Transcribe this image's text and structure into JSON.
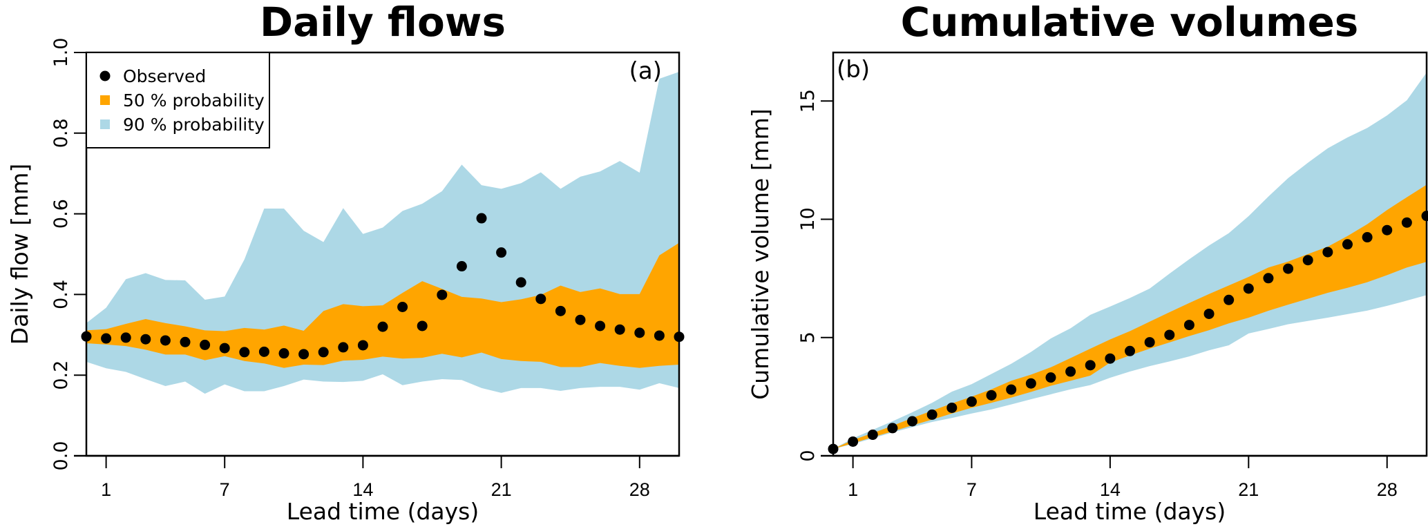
{
  "legend": {
    "observed": "Observed",
    "p50": "50 % probability",
    "p90": "90 % probability"
  },
  "colors": {
    "observed": "#000000",
    "band50": "#FFA500",
    "band90": "#ADD8E6"
  },
  "chart_data": [
    {
      "type": "area",
      "title": "Daily flows",
      "panel_label": "(a)",
      "xlabel": "Lead time (days)",
      "ylabel": "Daily flow [mm]",
      "xlim": [
        0,
        30
      ],
      "ylim": [
        0,
        1.0
      ],
      "x_ticks": [
        1,
        7,
        14,
        21,
        28
      ],
      "x_tick_labels": [
        "1",
        "7",
        "14",
        "21",
        "28"
      ],
      "y_ticks": [
        0,
        0.2,
        0.4,
        0.6,
        0.8,
        1.0
      ],
      "y_tick_labels": [
        "0.0",
        "0.2",
        "0.4",
        "0.6",
        "0.8",
        "1.0"
      ],
      "grid": false,
      "legend_position": "top-left",
      "x": [
        0,
        1,
        2,
        3,
        4,
        5,
        6,
        7,
        8,
        9,
        10,
        11,
        12,
        13,
        14,
        15,
        16,
        17,
        18,
        19,
        20,
        21,
        22,
        23,
        24,
        25,
        26,
        27,
        28,
        29,
        30
      ],
      "observed": [
        0.296,
        0.291,
        0.293,
        0.289,
        0.286,
        0.282,
        0.275,
        0.267,
        0.257,
        0.258,
        0.254,
        0.252,
        0.257,
        0.269,
        0.274,
        0.32,
        0.369,
        0.322,
        0.399,
        0.47,
        0.589,
        0.504,
        0.43,
        0.389,
        0.359,
        0.337,
        0.322,
        0.313,
        0.305,
        0.298,
        0.295
      ],
      "band90_upper": [
        0.329,
        0.367,
        0.438,
        0.453,
        0.436,
        0.435,
        0.387,
        0.395,
        0.487,
        0.613,
        0.613,
        0.558,
        0.53,
        0.614,
        0.55,
        0.566,
        0.607,
        0.625,
        0.656,
        0.722,
        0.671,
        0.662,
        0.676,
        0.703,
        0.662,
        0.692,
        0.705,
        0.731,
        0.702,
        0.935,
        0.952
      ],
      "band90_lower": [
        0.233,
        0.217,
        0.208,
        0.19,
        0.173,
        0.184,
        0.154,
        0.177,
        0.16,
        0.16,
        0.173,
        0.189,
        0.184,
        0.183,
        0.186,
        0.202,
        0.175,
        0.184,
        0.19,
        0.188,
        0.168,
        0.156,
        0.168,
        0.168,
        0.161,
        0.168,
        0.171,
        0.171,
        0.164,
        0.18,
        0.168
      ],
      "band50_upper": [
        0.311,
        0.314,
        0.327,
        0.339,
        0.329,
        0.321,
        0.311,
        0.309,
        0.317,
        0.313,
        0.323,
        0.31,
        0.359,
        0.376,
        0.371,
        0.373,
        0.404,
        0.433,
        0.414,
        0.394,
        0.39,
        0.381,
        0.388,
        0.399,
        0.422,
        0.406,
        0.415,
        0.401,
        0.401,
        0.497,
        0.528
      ],
      "band50_lower": [
        0.279,
        0.276,
        0.272,
        0.263,
        0.251,
        0.251,
        0.237,
        0.247,
        0.235,
        0.229,
        0.218,
        0.226,
        0.225,
        0.236,
        0.238,
        0.246,
        0.241,
        0.243,
        0.253,
        0.244,
        0.256,
        0.24,
        0.235,
        0.233,
        0.22,
        0.22,
        0.23,
        0.223,
        0.218,
        0.223,
        0.226
      ]
    },
    {
      "type": "area",
      "title": "Cumulative volumes",
      "panel_label": "(b)",
      "xlabel": "Lead time (days)",
      "ylabel": "Cumulative volume [mm]",
      "xlim": [
        0,
        30
      ],
      "ylim": [
        0,
        17.05
      ],
      "x_ticks": [
        1,
        7,
        14,
        21,
        28
      ],
      "x_tick_labels": [
        "1",
        "7",
        "14",
        "21",
        "28"
      ],
      "y_ticks": [
        0,
        5,
        10,
        15
      ],
      "y_tick_labels": [
        "0",
        "5",
        "10",
        "15"
      ],
      "grid": false,
      "x": [
        0,
        1,
        2,
        3,
        4,
        5,
        6,
        7,
        8,
        9,
        10,
        11,
        12,
        13,
        14,
        15,
        16,
        17,
        18,
        19,
        20,
        21,
        22,
        23,
        24,
        25,
        26,
        27,
        28,
        29,
        30
      ],
      "observed": [
        0.29,
        0.6,
        0.89,
        1.17,
        1.46,
        1.74,
        2.03,
        2.29,
        2.56,
        2.8,
        3.06,
        3.31,
        3.56,
        3.83,
        4.11,
        4.43,
        4.8,
        5.11,
        5.53,
        6.0,
        6.59,
        7.07,
        7.51,
        7.91,
        8.27,
        8.61,
        8.94,
        9.24,
        9.54,
        9.86,
        10.14
      ],
      "band90_upper": [
        0.29,
        0.74,
        1.1,
        1.46,
        1.84,
        2.24,
        2.71,
        3.03,
        3.46,
        3.89,
        4.39,
        4.96,
        5.39,
        5.96,
        6.31,
        6.67,
        7.07,
        7.7,
        8.31,
        8.89,
        9.41,
        10.13,
        10.96,
        11.74,
        12.39,
        13.0,
        13.46,
        13.86,
        14.39,
        15.03,
        16.2
      ],
      "band90_lower": [
        0.29,
        0.5,
        0.74,
        0.99,
        1.21,
        1.43,
        1.6,
        1.79,
        1.96,
        2.17,
        2.39,
        2.6,
        2.81,
        2.99,
        3.3,
        3.56,
        3.79,
        3.99,
        4.2,
        4.46,
        4.67,
        5.17,
        5.36,
        5.56,
        5.7,
        5.84,
        5.99,
        6.14,
        6.34,
        6.56,
        6.79
      ],
      "band50_upper": [
        0.29,
        0.67,
        0.96,
        1.27,
        1.6,
        1.91,
        2.21,
        2.5,
        2.81,
        3.17,
        3.43,
        3.74,
        4.13,
        4.53,
        4.92,
        5.27,
        5.67,
        6.07,
        6.46,
        6.84,
        7.2,
        7.56,
        7.96,
        8.21,
        8.53,
        8.84,
        9.29,
        9.79,
        10.39,
        10.93,
        11.46
      ],
      "band50_lower": [
        0.29,
        0.53,
        0.79,
        1.03,
        1.29,
        1.53,
        1.79,
        2.03,
        2.24,
        2.46,
        2.7,
        2.96,
        3.17,
        3.39,
        3.94,
        4.24,
        4.53,
        4.79,
        5.06,
        5.31,
        5.6,
        5.84,
        6.13,
        6.39,
        6.64,
        6.89,
        7.1,
        7.34,
        7.64,
        7.96,
        8.2
      ]
    }
  ]
}
